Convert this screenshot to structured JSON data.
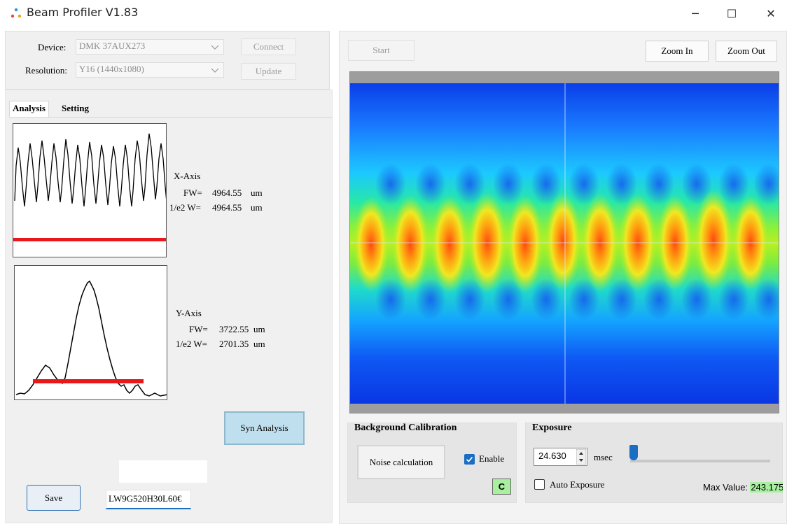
{
  "window": {
    "title": "Beam Profiler V1.83",
    "minimize_glyph": "─",
    "maximize_glyph": "☐",
    "close_glyph": "✕"
  },
  "device_panel": {
    "device_label": "Device:",
    "device_value": "DMK 37AUX273",
    "resolution_label": "Resolution:",
    "resolution_value": "Y16 (1440x1080)",
    "connect_label": "Connect",
    "update_label": "Update"
  },
  "tabs": [
    {
      "label": "Analysis",
      "selected": true
    },
    {
      "label": "Setting",
      "selected": false
    }
  ],
  "x_axis": {
    "title": "X-Axis",
    "fw_label": "FW=",
    "fw_value": "4964.55",
    "fw_unit": "um",
    "e2_label": "1/e2 W=",
    "e2_value": "4964.55",
    "e2_unit": "um"
  },
  "y_axis": {
    "title": "Y-Axis",
    "fw_label": "FW=",
    "fw_value": "3722.55",
    "fw_unit": "um",
    "e2_label": "1/e2 W=",
    "e2_value": "2701.35",
    "e2_unit": "um"
  },
  "buttons": {
    "syn_analysis": "Syn Analysis",
    "save": "Save",
    "start": "Start",
    "zoom_in": "Zoom In",
    "zoom_out": "Zoom Out",
    "noise_calculation": "Noise calculation",
    "c_button": "C"
  },
  "filename_field": {
    "value": "LW9G520H30L60€"
  },
  "background_calibration": {
    "title": "Background Calibration",
    "enable_label": "Enable",
    "enable_checked": true
  },
  "exposure": {
    "title": "Exposure",
    "value": "24.630",
    "unit": "msec",
    "auto_label": "Auto Exposure",
    "auto_checked": false,
    "slider_level": 0.0,
    "max_value_label": "Max Value:",
    "max_value": "243.175"
  },
  "colors": {
    "accent_blue": "#1b6ec2",
    "syn_button_bg": "#bfdfee",
    "c_button_bg": "#a8f0a0",
    "max_value_bg": "#a8f0a0",
    "threshold_red": "#e8191b"
  },
  "icons": {
    "app": "beam-dots-icon",
    "combo": "chevron-down-icon",
    "spinner": "up-down-arrows-icon",
    "check": "checkmark-icon"
  }
}
